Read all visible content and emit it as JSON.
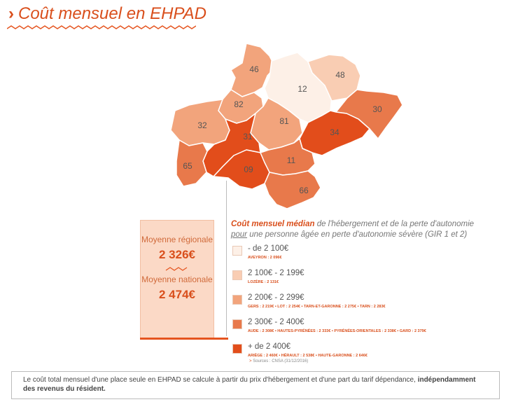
{
  "header": {
    "chevron": "›",
    "title": "Coût mensuel en EHPAD"
  },
  "colors": {
    "accent": "#e5541f",
    "tier1": "#fdf0e7",
    "tier2": "#f9cdb3",
    "tier3": "#f2a47c",
    "tier4": "#e8794b",
    "tier5": "#e24d1b"
  },
  "map": {
    "departments": [
      {
        "code": "46",
        "tier": 3
      },
      {
        "code": "12",
        "tier": 1
      },
      {
        "code": "48",
        "tier": 2
      },
      {
        "code": "82",
        "tier": 3
      },
      {
        "code": "30",
        "tier": 4
      },
      {
        "code": "32",
        "tier": 3
      },
      {
        "code": "81",
        "tier": 3
      },
      {
        "code": "31",
        "tier": 5
      },
      {
        "code": "34",
        "tier": 5
      },
      {
        "code": "65",
        "tier": 4
      },
      {
        "code": "09",
        "tier": 5
      },
      {
        "code": "11",
        "tier": 4
      },
      {
        "code": "66",
        "tier": 4
      }
    ]
  },
  "stats": {
    "regional_label": "Moyenne régionale",
    "regional_value": "2 326€",
    "national_label": "Moyenne nationale",
    "national_value": "2 474€"
  },
  "legend": {
    "title_highlight": "Coût mensuel médian",
    "title_rest": " de l'hébergement et de la perte d'autonomie",
    "subtitle_underlined": "pour",
    "subtitle_rest": " une personne âgée en perte d'autonomie sévère (GIR 1 et 2)",
    "items": [
      {
        "range": "- de 2 100€",
        "detail": "AVEYRON : 2 096€"
      },
      {
        "range": "2 100€ - 2 199€",
        "detail": "LOZÈRE : 2 131€"
      },
      {
        "range": "2 200€ - 2 299€",
        "detail": "GERS : 2 219€ • LOT : 2 254€ • TARN-ET-GARONNE : 2 275€ • TARN : 2 283€"
      },
      {
        "range": "2 300€ - 2 400€",
        "detail": "AUDE : 2 308€ • HAUTES-PYRÉNÉES : 2 333€ • PYRÉNÉES-ORIENTALES : 2 338€ • GARD : 2 379€"
      },
      {
        "range": "+ de 2 400€",
        "detail": "ARIÈGE : 2 460€ • HÉRAULT : 2 538€ • HAUTE-GARONNE : 2 646€"
      }
    ]
  },
  "source": {
    "arrow": ">",
    "text": "Sources : CNSA (31/12/2016)"
  },
  "note": {
    "text": "Le coût total mensuel d'une place seule en EHPAD se calcule à partir du prix d'hébergement et d'une part du tarif dépendance,",
    "bold": "indépendamment des revenus du résident."
  }
}
